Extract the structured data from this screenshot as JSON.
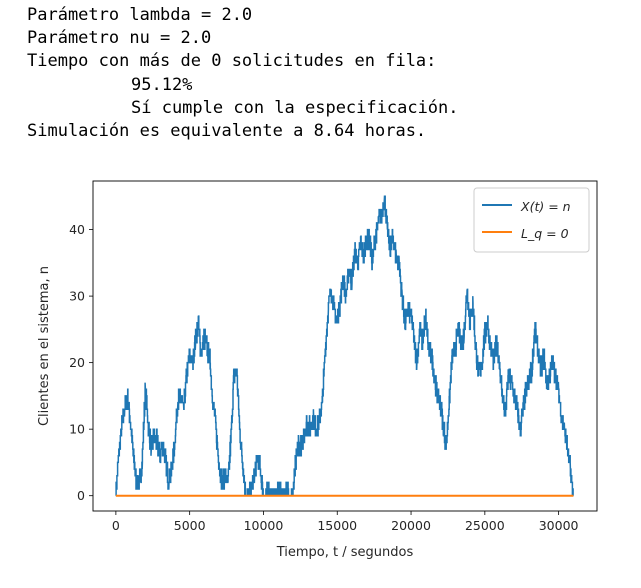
{
  "console": {
    "lines": [
      {
        "text": "Parámetro lambda = 2.0",
        "indent": false
      },
      {
        "text": "Parámetro nu = 2.0",
        "indent": false
      },
      {
        "text": "Tiempo con más de 0 solicitudes en fila:",
        "indent": false
      },
      {
        "text": "95.12%",
        "indent": true
      },
      {
        "text": "Sí cumple con la especificación.",
        "indent": true
      },
      {
        "text": "Simulación es equivalente a 8.64 horas.",
        "indent": false
      }
    ]
  },
  "chart_data": {
    "type": "line",
    "xlabel": "Tiempo, t / segundos",
    "ylabel": "Clientes en el sistema, n",
    "xlim": [
      -1550,
      32600
    ],
    "ylim": [
      -2.3,
      47.3
    ],
    "xticks": [
      0,
      5000,
      10000,
      15000,
      20000,
      25000,
      30000
    ],
    "yticks": [
      0,
      10,
      20,
      30,
      40
    ],
    "grid": false,
    "legend_position": "top-right",
    "series": [
      {
        "name": "X(t) = n",
        "color": "#1f77b4",
        "x": [
          0,
          200,
          400,
          600,
          800,
          1000,
          1200,
          1400,
          1600,
          1800,
          2000,
          2200,
          2400,
          2600,
          2800,
          3000,
          3200,
          3400,
          3600,
          3800,
          4000,
          4200,
          4400,
          4600,
          4800,
          5000,
          5200,
          5400,
          5600,
          5800,
          6000,
          6200,
          6400,
          6600,
          6800,
          7000,
          7200,
          7400,
          7600,
          7800,
          8000,
          8200,
          8400,
          8600,
          8800,
          9000,
          9200,
          9400,
          9600,
          9800,
          10000,
          10200,
          10400,
          10600,
          10800,
          11000,
          11200,
          11400,
          11600,
          11800,
          12000,
          12200,
          12400,
          12600,
          12800,
          13000,
          13200,
          13400,
          13600,
          13800,
          14000,
          14200,
          14400,
          14600,
          14800,
          15000,
          15200,
          15400,
          15600,
          15800,
          16000,
          16200,
          16400,
          16600,
          16800,
          17000,
          17200,
          17400,
          17600,
          17800,
          18000,
          18200,
          18400,
          18600,
          18800,
          19000,
          19200,
          19400,
          19600,
          19800,
          20000,
          20200,
          20400,
          20600,
          20800,
          21000,
          21200,
          21400,
          21600,
          21800,
          22000,
          22200,
          22400,
          22600,
          22800,
          23000,
          23200,
          23400,
          23600,
          23800,
          24000,
          24200,
          24400,
          24600,
          24800,
          25000,
          25200,
          25400,
          25600,
          25800,
          26000,
          26200,
          26400,
          26600,
          26800,
          27000,
          27200,
          27400,
          27600,
          27800,
          28000,
          28200,
          28400,
          28600,
          28800,
          29000,
          29200,
          29400,
          29600,
          29800,
          30000,
          30200,
          30400,
          30600,
          30800,
          31000
        ],
        "y": [
          0,
          6,
          10,
          13,
          15,
          11,
          6,
          2,
          2,
          5,
          16,
          11,
          7,
          9,
          8,
          6,
          8,
          5,
          2,
          4,
          8,
          14,
          15,
          13,
          18,
          21,
          20,
          23,
          26,
          21,
          24,
          22,
          20,
          14,
          10,
          5,
          2,
          3,
          2,
          8,
          18,
          19,
          10,
          5,
          0,
          0,
          1,
          3,
          6,
          4,
          0,
          0,
          1,
          0,
          0,
          1,
          0,
          0,
          1,
          0,
          0,
          5,
          8,
          7,
          10,
          11,
          10,
          12,
          10,
          11,
          14,
          22,
          28,
          31,
          28,
          26,
          29,
          33,
          30,
          34,
          32,
          37,
          35,
          38,
          36,
          39,
          38,
          35,
          39,
          41,
          42,
          45,
          40,
          37,
          39,
          36,
          35,
          30,
          26,
          28,
          27,
          24,
          20,
          25,
          23,
          27,
          22,
          21,
          18,
          15,
          14,
          10,
          8,
          14,
          21,
          22,
          25,
          23,
          24,
          31,
          26,
          29,
          22,
          18,
          20,
          24,
          26,
          22,
          20,
          23,
          20,
          15,
          12,
          18,
          17,
          15,
          13,
          10,
          13,
          16,
          17,
          19,
          25,
          22,
          19,
          21,
          17,
          18,
          20,
          18,
          16,
          12,
          10,
          7,
          4,
          0
        ]
      },
      {
        "name": "L_q = 0",
        "color": "#ff7f0e",
        "x": [
          0,
          31000
        ],
        "y": [
          0,
          0
        ]
      }
    ]
  }
}
